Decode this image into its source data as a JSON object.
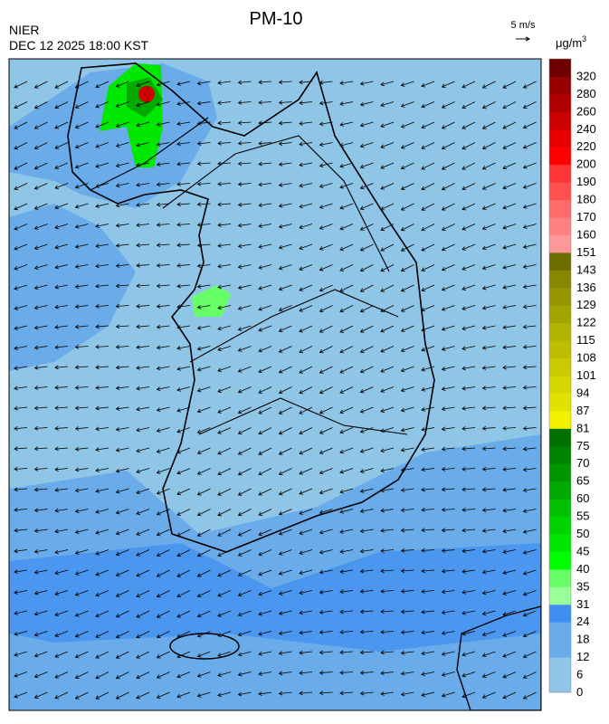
{
  "title": "PM-10",
  "agency": "NIER",
  "datetime": "DEC 12 2025 18:00 KST",
  "wind_scale": "5 m/s",
  "unit": {
    "base": "μg/m",
    "sup": "3"
  },
  "legend": {
    "levels": [
      0,
      6,
      12,
      18,
      24,
      31,
      35,
      40,
      45,
      50,
      55,
      60,
      65,
      70,
      75,
      81,
      87,
      94,
      101,
      108,
      115,
      122,
      129,
      136,
      143,
      151,
      160,
      170,
      180,
      190,
      200,
      220,
      240,
      260,
      280,
      320
    ],
    "colors": [
      "#8fc5e6",
      "#8fc5e6",
      "#6aabea",
      "#6aabea",
      "#3f8ff2",
      "#99ff99",
      "#66ff66",
      "#00ff00",
      "#00e800",
      "#00d400",
      "#00c000",
      "#00aa00",
      "#009600",
      "#008400",
      "#007000",
      "#f2f200",
      "#e2e200",
      "#d6d600",
      "#caca00",
      "#bebe00",
      "#b2b200",
      "#a4a400",
      "#969600",
      "#888800",
      "#6e6e00",
      "#ff9999",
      "#ff8080",
      "#ff6a6a",
      "#ff5050",
      "#ff3434",
      "#ff0000",
      "#e60000",
      "#cc0000",
      "#b00000",
      "#960000",
      "#700000"
    ]
  }
}
